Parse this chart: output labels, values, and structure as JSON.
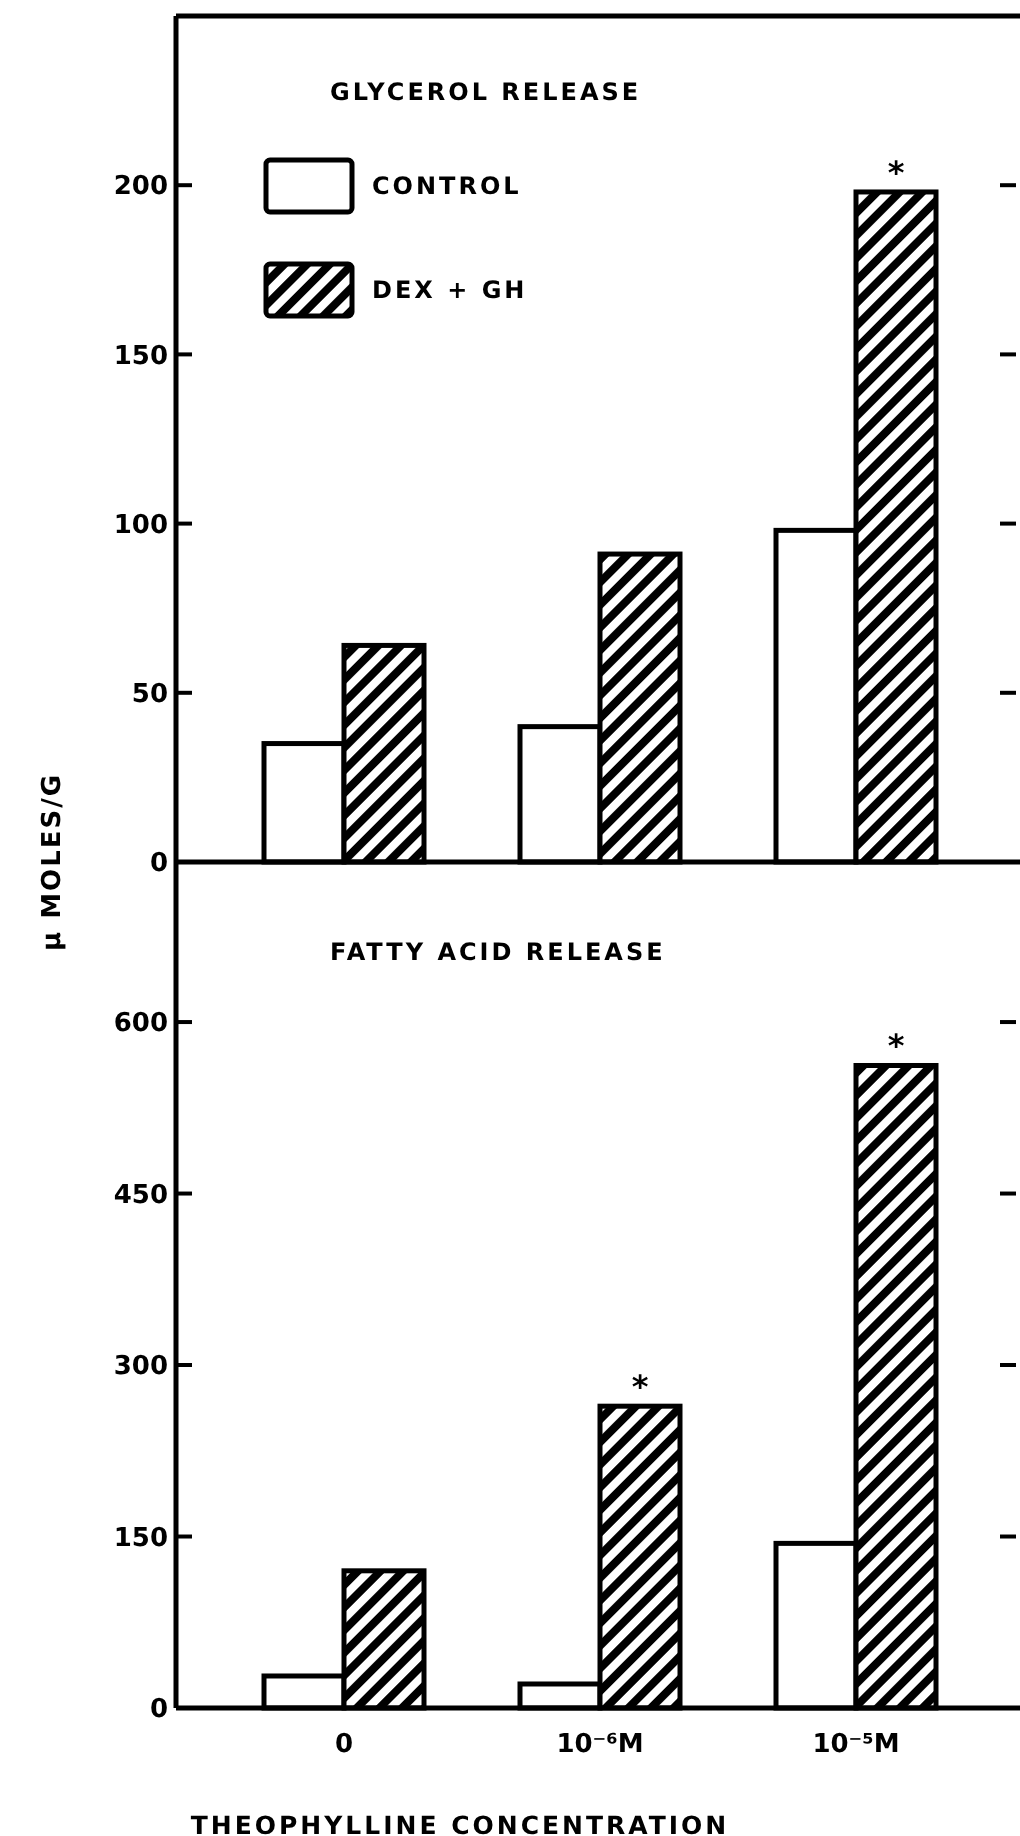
{
  "chart_data": [
    {
      "type": "bar",
      "title": "GLYCEROL RELEASE",
      "ylabel": "μ MOLES/G",
      "categories": [
        "0",
        "10⁻⁶M",
        "10⁻⁵M"
      ],
      "series": [
        {
          "name": "CONTROL",
          "color": "#ffffff",
          "values": [
            35,
            40,
            98
          ]
        },
        {
          "name": "DEX + GH",
          "color": "#000000",
          "values": [
            64,
            91,
            198
          ]
        }
      ],
      "ylim": [
        0,
        250
      ],
      "yticks": [
        0,
        50,
        100,
        150,
        200
      ],
      "tick_labels": "y",
      "legend": "top left",
      "grid": false,
      "annotations": [
        {
          "text": "*",
          "x": "10⁻⁵M",
          "y": 198
        }
      ]
    },
    {
      "type": "bar",
      "title": "FATTY ACID RELEASE",
      "xlabel": "THEOPHYLLINE CONCENTRATION",
      "categories": [
        "0",
        "10⁻⁶M",
        "10⁻⁵M"
      ],
      "series": [
        {
          "color": "#ffffff",
          "values": [
            28,
            21,
            144
          ]
        },
        {
          "color": "#000000",
          "values": [
            120,
            264,
            562
          ]
        }
      ],
      "ylim": [
        0,
        740
      ],
      "yticks": [
        0,
        150,
        300,
        450,
        600
      ],
      "grid": false,
      "annotations": [
        {
          "text": "*",
          "x": "10⁻⁶M",
          "y": 264
        },
        {
          "text": "*",
          "x": "10⁻⁵M",
          "y": 562
        }
      ]
    }
  ]
}
